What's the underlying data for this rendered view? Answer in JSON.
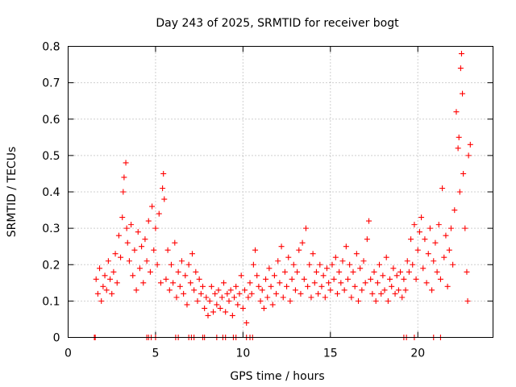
{
  "chart_data": {
    "type": "scatter",
    "title": "Day 243 of 2025, SRMTID for receiver bogt",
    "xlabel": "GPS time / hours",
    "ylabel": "SRMTID / TECUs",
    "xlim": [
      0,
      24.3
    ],
    "ylim": [
      0,
      0.8
    ],
    "xticks": [
      0,
      5,
      10,
      15,
      20
    ],
    "xtick_labels": [
      "0",
      "5",
      "10",
      "15",
      "20"
    ],
    "yticks": [
      0,
      0.1,
      0.2,
      0.3,
      0.4,
      0.5,
      0.6,
      0.7,
      0.8
    ],
    "ytick_labels": [
      "0",
      "0.1",
      "0.2",
      "0.3",
      "0.4",
      "0.5",
      "0.6",
      "0.7",
      "0.8"
    ],
    "grid": true,
    "marker": "+",
    "color": "#ff0000",
    "series": [
      {
        "name": "SRMTID",
        "points": [
          [
            1.5,
            0.0
          ],
          [
            1.55,
            0.0
          ],
          [
            4.5,
            0.0
          ],
          [
            4.6,
            0.0
          ],
          [
            4.75,
            0.0
          ],
          [
            5.0,
            0.0
          ],
          [
            6.15,
            0.0
          ],
          [
            6.3,
            0.0
          ],
          [
            6.9,
            0.0
          ],
          [
            7.05,
            0.0
          ],
          [
            7.2,
            0.0
          ],
          [
            7.7,
            0.0
          ],
          [
            7.8,
            0.0
          ],
          [
            8.5,
            0.0
          ],
          [
            8.85,
            0.0
          ],
          [
            9.0,
            0.0
          ],
          [
            9.45,
            0.0
          ],
          [
            9.6,
            0.0
          ],
          [
            10.2,
            0.0
          ],
          [
            10.4,
            0.0
          ],
          [
            10.55,
            0.0
          ],
          [
            19.2,
            0.0
          ],
          [
            19.35,
            0.0
          ],
          [
            19.8,
            0.0
          ],
          [
            20.9,
            0.0
          ],
          [
            21.3,
            0.0
          ],
          [
            1.6,
            0.16
          ],
          [
            1.7,
            0.12
          ],
          [
            1.8,
            0.19
          ],
          [
            1.9,
            0.1
          ],
          [
            2.0,
            0.14
          ],
          [
            2.1,
            0.17
          ],
          [
            2.2,
            0.13
          ],
          [
            2.3,
            0.21
          ],
          [
            2.4,
            0.16
          ],
          [
            2.5,
            0.12
          ],
          [
            2.6,
            0.18
          ],
          [
            2.7,
            0.23
          ],
          [
            2.8,
            0.15
          ],
          [
            2.9,
            0.28
          ],
          [
            3.0,
            0.22
          ],
          [
            3.1,
            0.33
          ],
          [
            3.15,
            0.4
          ],
          [
            3.2,
            0.44
          ],
          [
            3.3,
            0.48
          ],
          [
            3.35,
            0.3
          ],
          [
            3.4,
            0.26
          ],
          [
            3.5,
            0.21
          ],
          [
            3.6,
            0.31
          ],
          [
            3.7,
            0.17
          ],
          [
            3.8,
            0.24
          ],
          [
            3.9,
            0.13
          ],
          [
            4.0,
            0.29
          ],
          [
            4.1,
            0.19
          ],
          [
            4.2,
            0.25
          ],
          [
            4.3,
            0.15
          ],
          [
            4.4,
            0.27
          ],
          [
            4.5,
            0.21
          ],
          [
            4.6,
            0.32
          ],
          [
            4.7,
            0.18
          ],
          [
            4.8,
            0.36
          ],
          [
            4.9,
            0.24
          ],
          [
            5.0,
            0.3
          ],
          [
            5.1,
            0.2
          ],
          [
            5.2,
            0.34
          ],
          [
            5.3,
            0.15
          ],
          [
            5.4,
            0.41
          ],
          [
            5.45,
            0.45
          ],
          [
            5.5,
            0.38
          ],
          [
            5.6,
            0.16
          ],
          [
            5.7,
            0.24
          ],
          [
            5.8,
            0.13
          ],
          [
            5.9,
            0.2
          ],
          [
            6.0,
            0.15
          ],
          [
            6.1,
            0.26
          ],
          [
            6.2,
            0.11
          ],
          [
            6.3,
            0.18
          ],
          [
            6.4,
            0.14
          ],
          [
            6.5,
            0.21
          ],
          [
            6.6,
            0.12
          ],
          [
            6.7,
            0.17
          ],
          [
            6.8,
            0.09
          ],
          [
            6.9,
            0.2
          ],
          [
            7.0,
            0.15
          ],
          [
            7.1,
            0.23
          ],
          [
            7.2,
            0.13
          ],
          [
            7.3,
            0.18
          ],
          [
            7.4,
            0.1
          ],
          [
            7.5,
            0.16
          ],
          [
            7.6,
            0.12
          ],
          [
            7.7,
            0.14
          ],
          [
            7.8,
            0.08
          ],
          [
            7.9,
            0.11
          ],
          [
            8.0,
            0.06
          ],
          [
            8.1,
            0.1
          ],
          [
            8.2,
            0.14
          ],
          [
            8.3,
            0.07
          ],
          [
            8.4,
            0.12
          ],
          [
            8.5,
            0.09
          ],
          [
            8.6,
            0.13
          ],
          [
            8.7,
            0.08
          ],
          [
            8.8,
            0.11
          ],
          [
            8.9,
            0.15
          ],
          [
            9.0,
            0.07
          ],
          [
            9.1,
            0.12
          ],
          [
            9.2,
            0.1
          ],
          [
            9.3,
            0.13
          ],
          [
            9.4,
            0.06
          ],
          [
            9.5,
            0.11
          ],
          [
            9.6,
            0.14
          ],
          [
            9.7,
            0.09
          ],
          [
            9.8,
            0.12
          ],
          [
            9.9,
            0.17
          ],
          [
            10.0,
            0.08
          ],
          [
            10.1,
            0.13
          ],
          [
            10.2,
            0.04
          ],
          [
            10.3,
            0.11
          ],
          [
            10.4,
            0.15
          ],
          [
            10.5,
            0.12
          ],
          [
            10.6,
            0.2
          ],
          [
            10.7,
            0.24
          ],
          [
            10.8,
            0.17
          ],
          [
            10.9,
            0.14
          ],
          [
            11.0,
            0.1
          ],
          [
            11.1,
            0.13
          ],
          [
            11.2,
            0.08
          ],
          [
            11.3,
            0.16
          ],
          [
            11.4,
            0.11
          ],
          [
            11.5,
            0.19
          ],
          [
            11.6,
            0.14
          ],
          [
            11.7,
            0.09
          ],
          [
            11.8,
            0.17
          ],
          [
            11.9,
            0.12
          ],
          [
            12.0,
            0.21
          ],
          [
            12.1,
            0.15
          ],
          [
            12.2,
            0.25
          ],
          [
            12.3,
            0.11
          ],
          [
            12.4,
            0.18
          ],
          [
            12.5,
            0.14
          ],
          [
            12.6,
            0.22
          ],
          [
            12.7,
            0.1
          ],
          [
            12.8,
            0.16
          ],
          [
            12.9,
            0.2
          ],
          [
            13.0,
            0.13
          ],
          [
            13.1,
            0.18
          ],
          [
            13.2,
            0.24
          ],
          [
            13.3,
            0.12
          ],
          [
            13.4,
            0.26
          ],
          [
            13.5,
            0.16
          ],
          [
            13.6,
            0.3
          ],
          [
            13.7,
            0.14
          ],
          [
            13.8,
            0.2
          ],
          [
            13.9,
            0.11
          ],
          [
            14.0,
            0.23
          ],
          [
            14.1,
            0.15
          ],
          [
            14.2,
            0.18
          ],
          [
            14.3,
            0.12
          ],
          [
            14.4,
            0.2
          ],
          [
            14.5,
            0.14
          ],
          [
            14.6,
            0.17
          ],
          [
            14.7,
            0.11
          ],
          [
            14.8,
            0.19
          ],
          [
            14.9,
            0.15
          ],
          [
            15.0,
            0.13
          ],
          [
            15.1,
            0.2
          ],
          [
            15.2,
            0.16
          ],
          [
            15.3,
            0.22
          ],
          [
            15.4,
            0.12
          ],
          [
            15.5,
            0.18
          ],
          [
            15.6,
            0.15
          ],
          [
            15.7,
            0.21
          ],
          [
            15.8,
            0.13
          ],
          [
            15.9,
            0.25
          ],
          [
            16.0,
            0.16
          ],
          [
            16.1,
            0.2
          ],
          [
            16.2,
            0.11
          ],
          [
            16.3,
            0.18
          ],
          [
            16.4,
            0.14
          ],
          [
            16.5,
            0.23
          ],
          [
            16.6,
            0.1
          ],
          [
            16.7,
            0.19
          ],
          [
            16.8,
            0.13
          ],
          [
            16.9,
            0.21
          ],
          [
            17.0,
            0.15
          ],
          [
            17.1,
            0.27
          ],
          [
            17.2,
            0.32
          ],
          [
            17.3,
            0.16
          ],
          [
            17.4,
            0.12
          ],
          [
            17.5,
            0.18
          ],
          [
            17.6,
            0.1
          ],
          [
            17.7,
            0.15
          ],
          [
            17.8,
            0.2
          ],
          [
            17.9,
            0.12
          ],
          [
            18.0,
            0.17
          ],
          [
            18.1,
            0.13
          ],
          [
            18.2,
            0.22
          ],
          [
            18.3,
            0.1
          ],
          [
            18.4,
            0.16
          ],
          [
            18.5,
            0.14
          ],
          [
            18.6,
            0.19
          ],
          [
            18.7,
            0.12
          ],
          [
            18.8,
            0.17
          ],
          [
            18.9,
            0.13
          ],
          [
            19.0,
            0.18
          ],
          [
            19.1,
            0.11
          ],
          [
            19.2,
            0.16
          ],
          [
            19.3,
            0.13
          ],
          [
            19.4,
            0.21
          ],
          [
            19.5,
            0.18
          ],
          [
            19.6,
            0.27
          ],
          [
            19.7,
            0.2
          ],
          [
            19.8,
            0.31
          ],
          [
            19.9,
            0.16
          ],
          [
            20.0,
            0.24
          ],
          [
            20.1,
            0.29
          ],
          [
            20.2,
            0.33
          ],
          [
            20.3,
            0.19
          ],
          [
            20.4,
            0.27
          ],
          [
            20.5,
            0.15
          ],
          [
            20.6,
            0.23
          ],
          [
            20.7,
            0.3
          ],
          [
            20.8,
            0.13
          ],
          [
            20.9,
            0.21
          ],
          [
            21.0,
            0.26
          ],
          [
            21.1,
            0.18
          ],
          [
            21.2,
            0.31
          ],
          [
            21.3,
            0.16
          ],
          [
            21.4,
            0.41
          ],
          [
            21.5,
            0.22
          ],
          [
            21.6,
            0.28
          ],
          [
            21.7,
            0.14
          ],
          [
            21.8,
            0.24
          ],
          [
            21.9,
            0.3
          ],
          [
            22.0,
            0.2
          ],
          [
            22.1,
            0.35
          ],
          [
            22.2,
            0.62
          ],
          [
            22.3,
            0.52
          ],
          [
            22.35,
            0.55
          ],
          [
            22.4,
            0.4
          ],
          [
            22.45,
            0.74
          ],
          [
            22.5,
            0.78
          ],
          [
            22.55,
            0.67
          ],
          [
            22.6,
            0.45
          ],
          [
            22.7,
            0.3
          ],
          [
            22.8,
            0.18
          ],
          [
            22.85,
            0.1
          ],
          [
            22.9,
            0.5
          ],
          [
            23.0,
            0.53
          ]
        ]
      }
    ]
  }
}
